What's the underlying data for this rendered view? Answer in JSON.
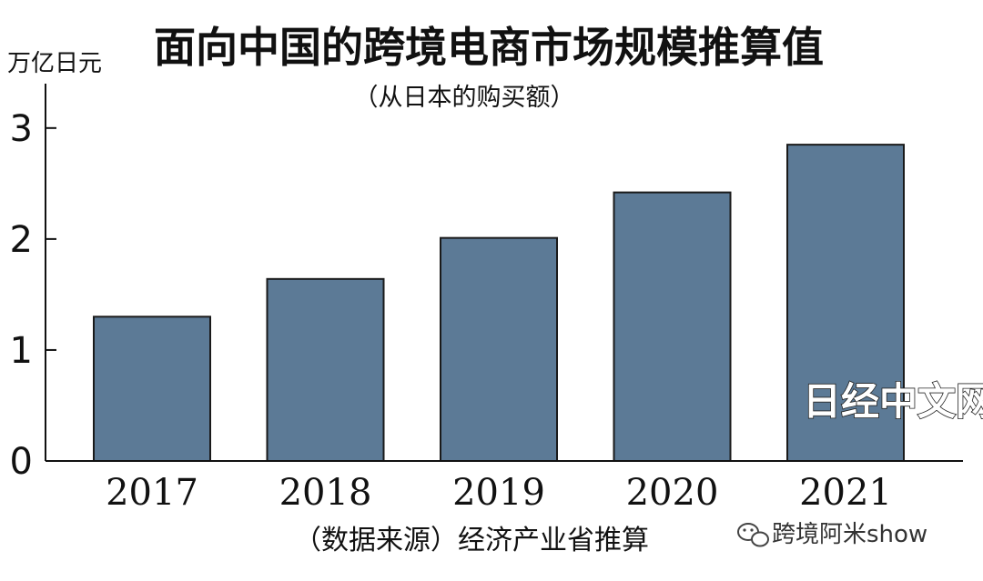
{
  "chart_data": {
    "type": "bar",
    "title": "面向中国的跨境电商市场规模推算值",
    "subtitle": "（从日本的购买额）",
    "ylabel": "万亿日元",
    "categories": [
      "2017",
      "2018",
      "2019",
      "2020",
      "2021"
    ],
    "values": [
      1.3,
      1.64,
      2.01,
      2.42,
      2.85
    ],
    "ylim": [
      0,
      3.4
    ],
    "yticks": [
      0,
      1,
      2,
      3
    ],
    "bar_color": "#5c7a96",
    "grid": false,
    "source": "（数据来源）经济产业省推算"
  },
  "watermarks": {
    "nikkei": "日经中文网",
    "account": "跨境阿米show"
  }
}
